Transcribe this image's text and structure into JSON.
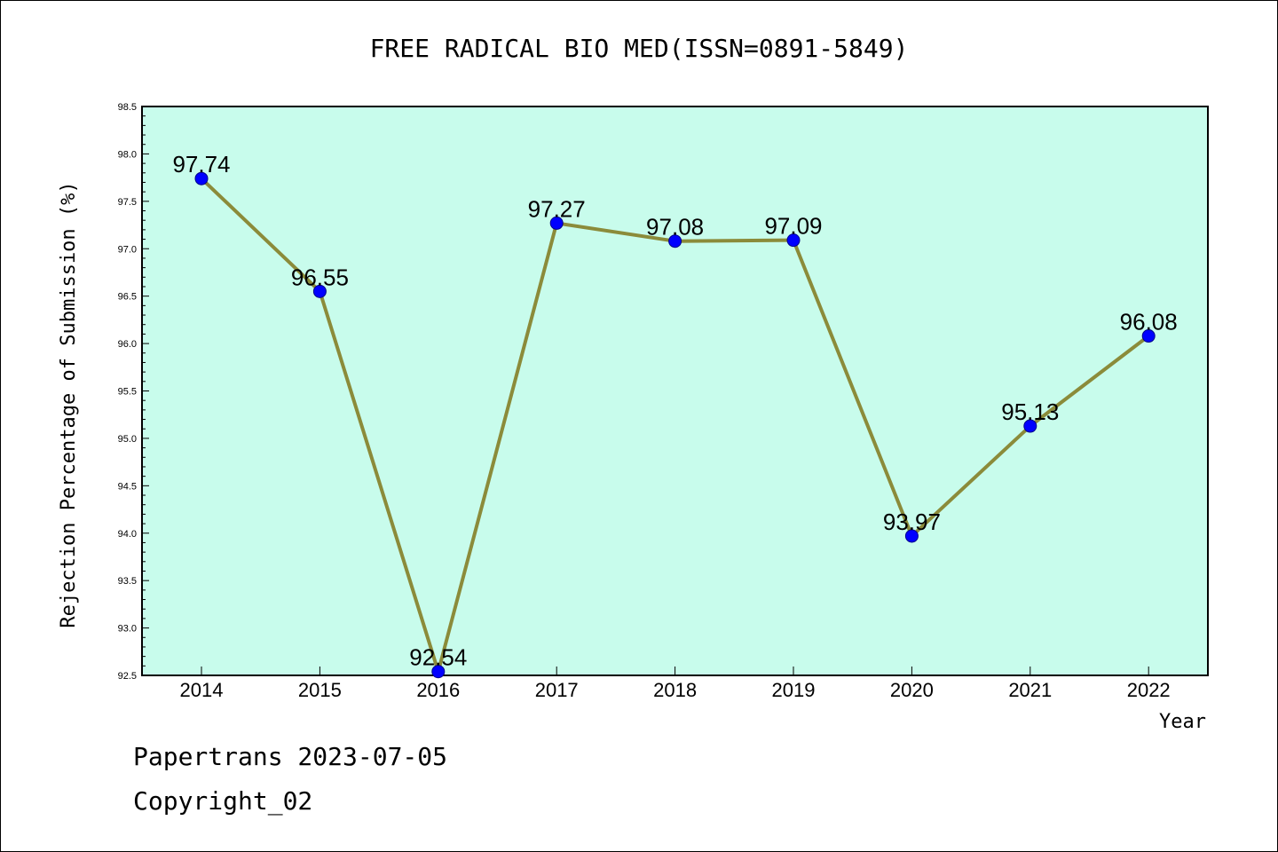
{
  "chart_data": {
    "type": "line",
    "title": "FREE RADICAL BIO MED(ISSN=0891-5849)",
    "xlabel": "Year",
    "ylabel": "Rejection Percentage of Submission (%)",
    "categories": [
      "2014",
      "2015",
      "2016",
      "2017",
      "2018",
      "2019",
      "2020",
      "2021",
      "2022"
    ],
    "values": [
      97.74,
      96.55,
      92.54,
      97.27,
      97.08,
      97.09,
      93.97,
      95.13,
      96.08
    ],
    "data_labels": [
      "97.74",
      "96.55",
      "92.54",
      "97.27",
      "97.08",
      "97.09",
      "93.97",
      "95.13",
      "96.08"
    ],
    "ylim": [
      92.5,
      98.5
    ],
    "yticks": [
      "92.5",
      "93.0",
      "93.5",
      "94.0",
      "94.5",
      "95.0",
      "95.5",
      "96.0",
      "96.5",
      "97.0",
      "97.5",
      "98.0",
      "98.5"
    ],
    "grid": false,
    "colors": {
      "plot_background": "#c8fcec",
      "line": "#8b8b3a",
      "marker": "#0000ff"
    }
  },
  "footer": {
    "line1": "Papertrans 2023-07-05",
    "line2": "Copyright_02"
  }
}
